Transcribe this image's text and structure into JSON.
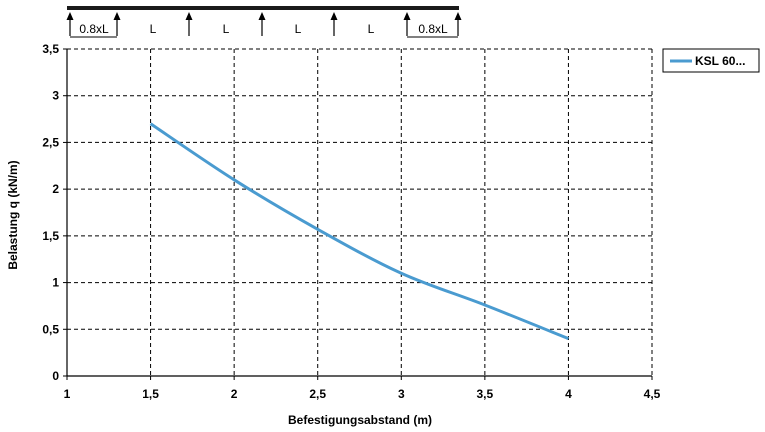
{
  "chart_data": {
    "type": "line",
    "xlabel": "Befestigungsabstand (m)",
    "ylabel": "Belastung q (kN/m)",
    "xlim": [
      1,
      4.5
    ],
    "ylim": [
      0,
      3.5
    ],
    "xticks": [
      1,
      1.5,
      2,
      2.5,
      3,
      3.5,
      4,
      4.5
    ],
    "xtick_labels": [
      "1",
      "1,5",
      "2",
      "2,5",
      "3",
      "3,5",
      "4",
      "4,5"
    ],
    "yticks": [
      0,
      0.5,
      1,
      1.5,
      2,
      2.5,
      3,
      3.5
    ],
    "ytick_labels": [
      "0",
      "0,5",
      "1",
      "1,5",
      "2",
      "2,5",
      "3",
      "3,5"
    ],
    "grid": true,
    "grid_style": "dashed",
    "legend_position": "top-right, outside plot",
    "series": [
      {
        "name": "KSL 60...",
        "color": "#4a9bd0",
        "x": [
          1.5,
          2.0,
          2.5,
          3.0,
          3.5,
          4.0
        ],
        "y": [
          2.7,
          2.1,
          1.57,
          1.1,
          0.76,
          0.4
        ]
      }
    ]
  },
  "span_diagram": {
    "labels": [
      "0.8xL",
      "L",
      "L",
      "L",
      "L",
      "0.8xL"
    ],
    "support_icon": "up-arrow-icon"
  }
}
